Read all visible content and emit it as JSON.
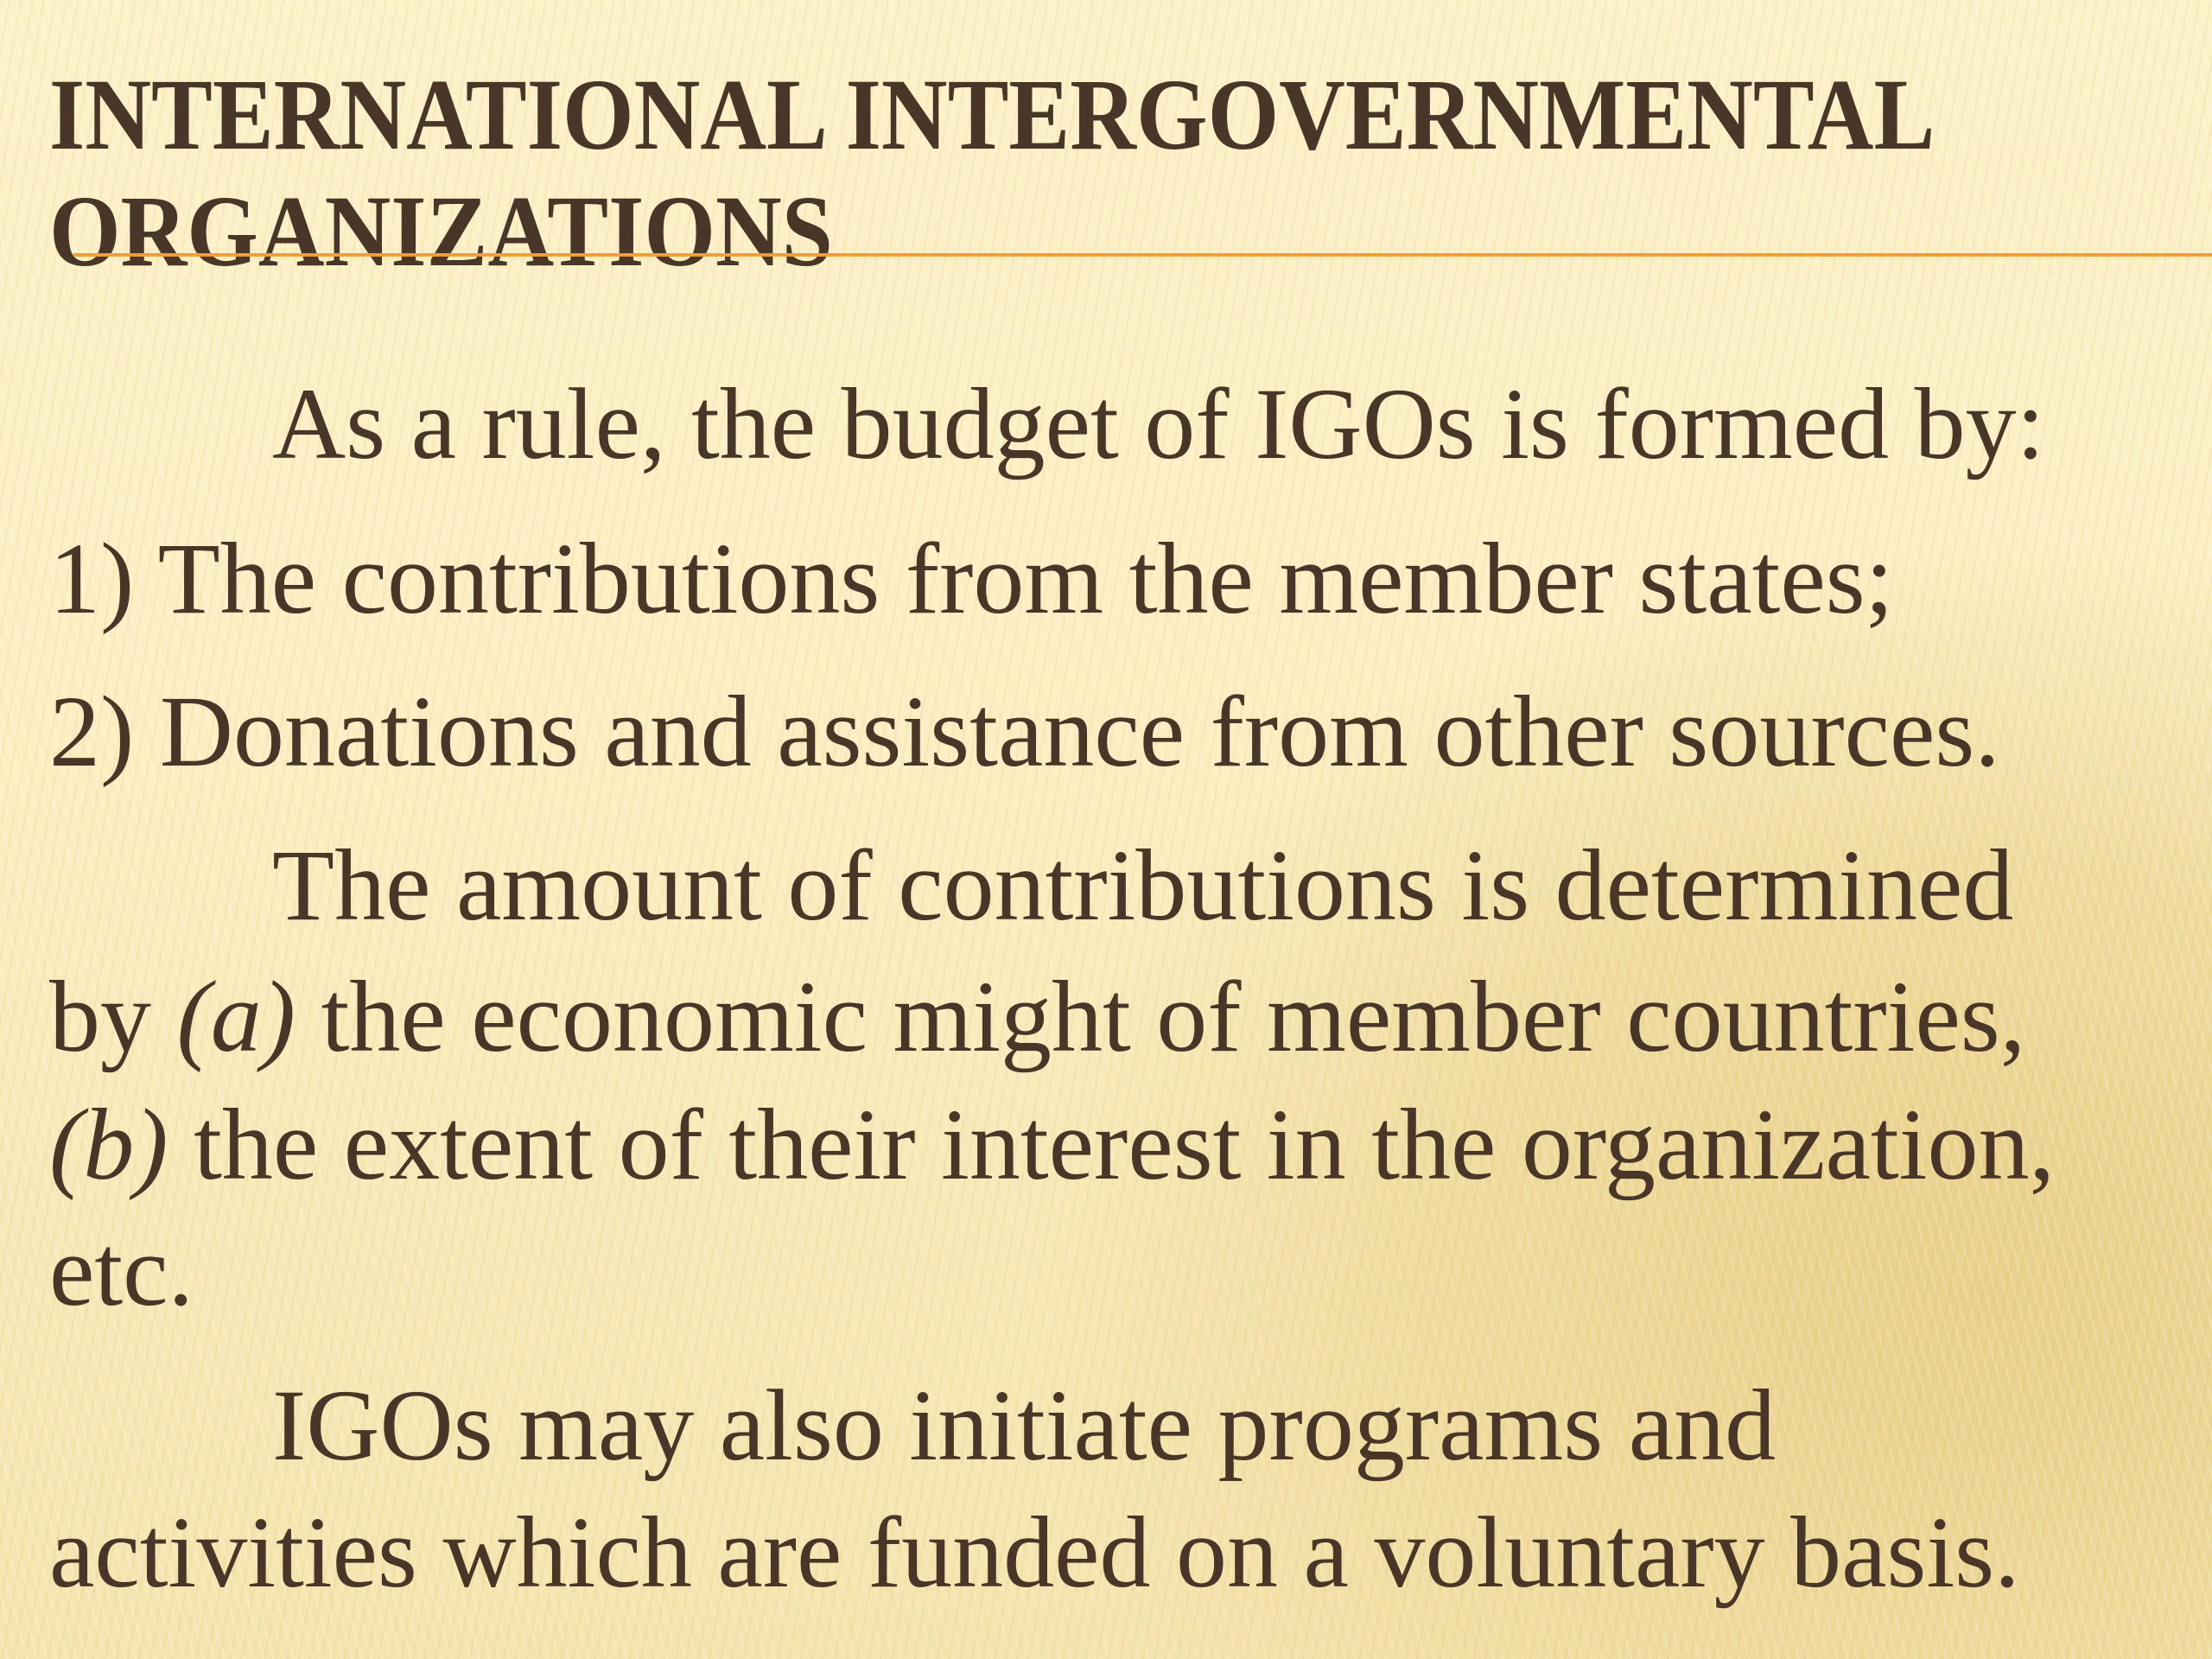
{
  "slide": {
    "title_lines": [
      "INTERNATIONAL INTERGOVERNMENTAL",
      "ORGANIZATIONS"
    ],
    "body": {
      "p1": "As a rule, the budget of IGOs is formed by:",
      "item1": "1) The contributions from the member states;",
      "item2": "2) Donations and assistance from other sources.",
      "p2_l1": "The amount of contributions is determined",
      "p2_l2_a": "by ",
      "p2_l2_b": "(a)",
      "p2_l2_c": " the economic might of member countries,",
      "p2_l3_a": "(b)",
      "p2_l3_b": " the extent of their interest in the organization,",
      "p2_l4": "etc.",
      "p3_l1": "IGOs may also initiate programs and",
      "p3_l2": "activities which are funded on a voluntary basis."
    },
    "colors": {
      "text": "#4a3628",
      "accent_rule": "#f0a030",
      "background": "#fcefc3"
    }
  }
}
